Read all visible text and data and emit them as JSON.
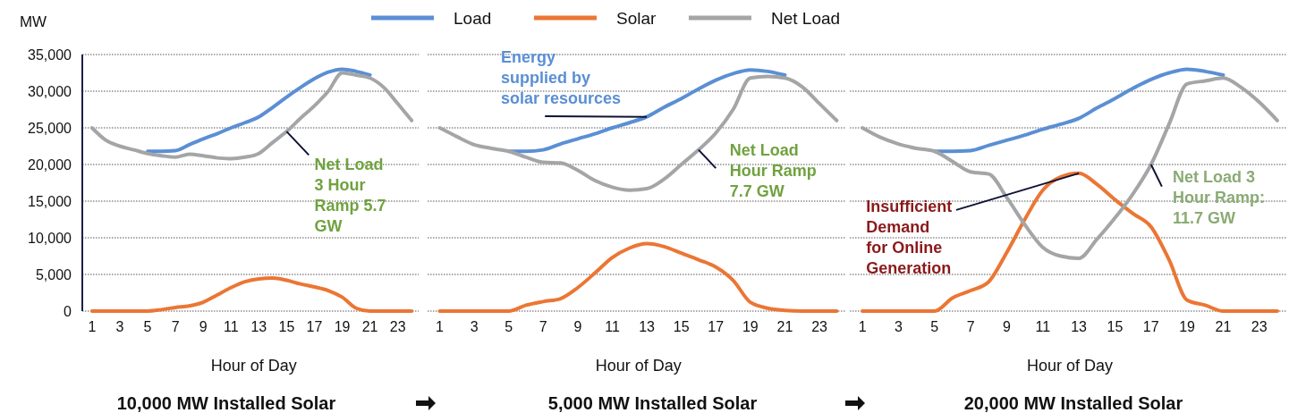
{
  "chart_data": [
    {
      "type": "line",
      "title": "10,000 MW Installed Solar",
      "xlabel": "Hour of Day",
      "ylabel": "MW",
      "legend": "top",
      "grid": "y",
      "x": [
        1,
        2,
        3,
        4,
        5,
        6,
        7,
        8,
        9,
        10,
        11,
        12,
        13,
        14,
        15,
        16,
        17,
        18,
        19,
        20,
        21,
        22,
        23,
        24
      ],
      "xlim": [
        0.3,
        24.5
      ],
      "xticks": [
        1,
        3,
        5,
        7,
        9,
        11,
        13,
        15,
        17,
        19,
        21,
        23
      ],
      "ylim": [
        0,
        35000
      ],
      "yticks": [
        0,
        {
          "value": 5000,
          "label": "5,000"
        },
        {
          "value": 10000,
          "label": "10,000"
        },
        {
          "value": 15000,
          "label": "15,000"
        },
        {
          "value": 20000,
          "label": "20,000"
        },
        {
          "value": 25000,
          "label": "25,000"
        },
        {
          "value": 30000,
          "label": "30,000"
        },
        {
          "value": 35000,
          "label": "35,000"
        }
      ],
      "series": [
        {
          "name": "Load",
          "color": "#5b8fd4",
          "values": [
            null,
            null,
            null,
            null,
            21800,
            21800,
            21900,
            22700,
            23500,
            24200,
            25000,
            25700,
            26500,
            27800,
            29200,
            30500,
            31700,
            32600,
            33000,
            32700,
            32200,
            null,
            null,
            null
          ]
        },
        {
          "name": "Solar",
          "color": "#eb7634",
          "values": [
            0,
            0,
            0,
            0,
            0,
            200,
            500,
            700,
            1200,
            2200,
            3200,
            4000,
            4400,
            4500,
            4200,
            3700,
            3300,
            2800,
            1900,
            400,
            0,
            0,
            0,
            0
          ]
        },
        {
          "name": "Net Load",
          "color": "#a3a5a7",
          "values": [
            25000,
            23300,
            22500,
            22000,
            21500,
            21200,
            21000,
            21400,
            21200,
            20900,
            20800,
            21000,
            21500,
            23000,
            24500,
            26300,
            28000,
            30000,
            32500,
            32200,
            31800,
            30500,
            28300,
            26000
          ]
        }
      ],
      "annotations": [
        {
          "text": "Net Load 3 Hour Ramp 5.7 GW",
          "x": 15,
          "y": 24500
        }
      ]
    },
    {
      "type": "line",
      "title": "5,000 MW Installed Solar",
      "xlabel": "Hour of Day",
      "grid": "y",
      "tick_labels": "x",
      "x": [
        1,
        2,
        3,
        4,
        5,
        6,
        7,
        8,
        9,
        10,
        11,
        12,
        13,
        14,
        15,
        16,
        17,
        18,
        19,
        20,
        21,
        22,
        23,
        24
      ],
      "xlim": [
        0.3,
        24.5
      ],
      "xticks": [
        1,
        3,
        5,
        7,
        9,
        11,
        13,
        15,
        17,
        19,
        21,
        23
      ],
      "ylim": [
        0,
        35000
      ],
      "yticks": [
        0,
        5000,
        10000,
        15000,
        20000,
        25000,
        30000,
        35000
      ],
      "series": [
        {
          "color": "#5b8fd4",
          "values": [
            null,
            null,
            null,
            null,
            21800,
            21800,
            22000,
            22800,
            23500,
            24200,
            25000,
            25700,
            26500,
            27800,
            29000,
            30300,
            31500,
            32400,
            32900,
            32700,
            32200,
            null,
            null,
            null
          ]
        },
        {
          "color": "#eb7634",
          "values": [
            0,
            0,
            0,
            0,
            0,
            800,
            1300,
            1700,
            3200,
            5200,
            7300,
            8600,
            9200,
            8800,
            7900,
            7000,
            6000,
            4200,
            1200,
            400,
            100,
            0,
            0,
            0
          ]
        },
        {
          "color": "#a3a5a7",
          "values": [
            25000,
            23800,
            22700,
            22200,
            21800,
            21000,
            20300,
            20200,
            19200,
            17800,
            16900,
            16500,
            16700,
            18000,
            20000,
            22000,
            24300,
            27500,
            31800,
            32000,
            31800,
            30600,
            28300,
            26000
          ]
        }
      ],
      "annotations": [
        {
          "text": "Energy supplied by solar resources",
          "x": 13,
          "y": 26500
        },
        {
          "text": "Net Load Hour Ramp 7.7 GW",
          "x": 16,
          "y": 22000
        }
      ]
    },
    {
      "type": "line",
      "title": "20,000 MW Installed Solar",
      "xlabel": "Hour of Day",
      "grid": "y",
      "tick_labels": "x",
      "x": [
        1,
        2,
        3,
        4,
        5,
        6,
        7,
        8,
        9,
        10,
        11,
        12,
        13,
        14,
        15,
        16,
        17,
        18,
        19,
        20,
        21,
        22,
        23,
        24
      ],
      "xlim": [
        0.3,
        24.5
      ],
      "xticks": [
        1,
        3,
        5,
        7,
        9,
        11,
        13,
        15,
        17,
        19,
        21,
        23
      ],
      "ylim": [
        0,
        35000
      ],
      "yticks": [
        0,
        5000,
        10000,
        15000,
        20000,
        25000,
        30000,
        35000
      ],
      "series": [
        {
          "color": "#5b8fd4",
          "values": [
            null,
            null,
            null,
            null,
            21800,
            21800,
            21900,
            22600,
            23300,
            24000,
            24800,
            25500,
            26300,
            27700,
            29000,
            30400,
            31600,
            32500,
            33000,
            32700,
            32200,
            null,
            null,
            null
          ]
        },
        {
          "color": "#eb7634",
          "values": [
            0,
            0,
            0,
            0,
            0,
            1800,
            2800,
            4000,
            8000,
            12500,
            16500,
            18300,
            18800,
            17300,
            15200,
            13300,
            11500,
            7000,
            1500,
            800,
            0,
            0,
            0,
            0
          ]
        },
        {
          "color": "#a3a5a7",
          "values": [
            25000,
            23700,
            22800,
            22200,
            21800,
            20400,
            19000,
            18700,
            15500,
            11800,
            8700,
            7500,
            7200,
            9800,
            12700,
            16000,
            20000,
            25500,
            31000,
            31400,
            31800,
            30500,
            28500,
            26000
          ]
        }
      ],
      "annotations": [
        {
          "text": "Insufficient Demand for Online Generation",
          "x": 13,
          "y": 18800
        },
        {
          "text": "Net Load 3 Hour Ramp: 11.7 GW",
          "x": 17,
          "y": 20000
        }
      ]
    }
  ]
}
